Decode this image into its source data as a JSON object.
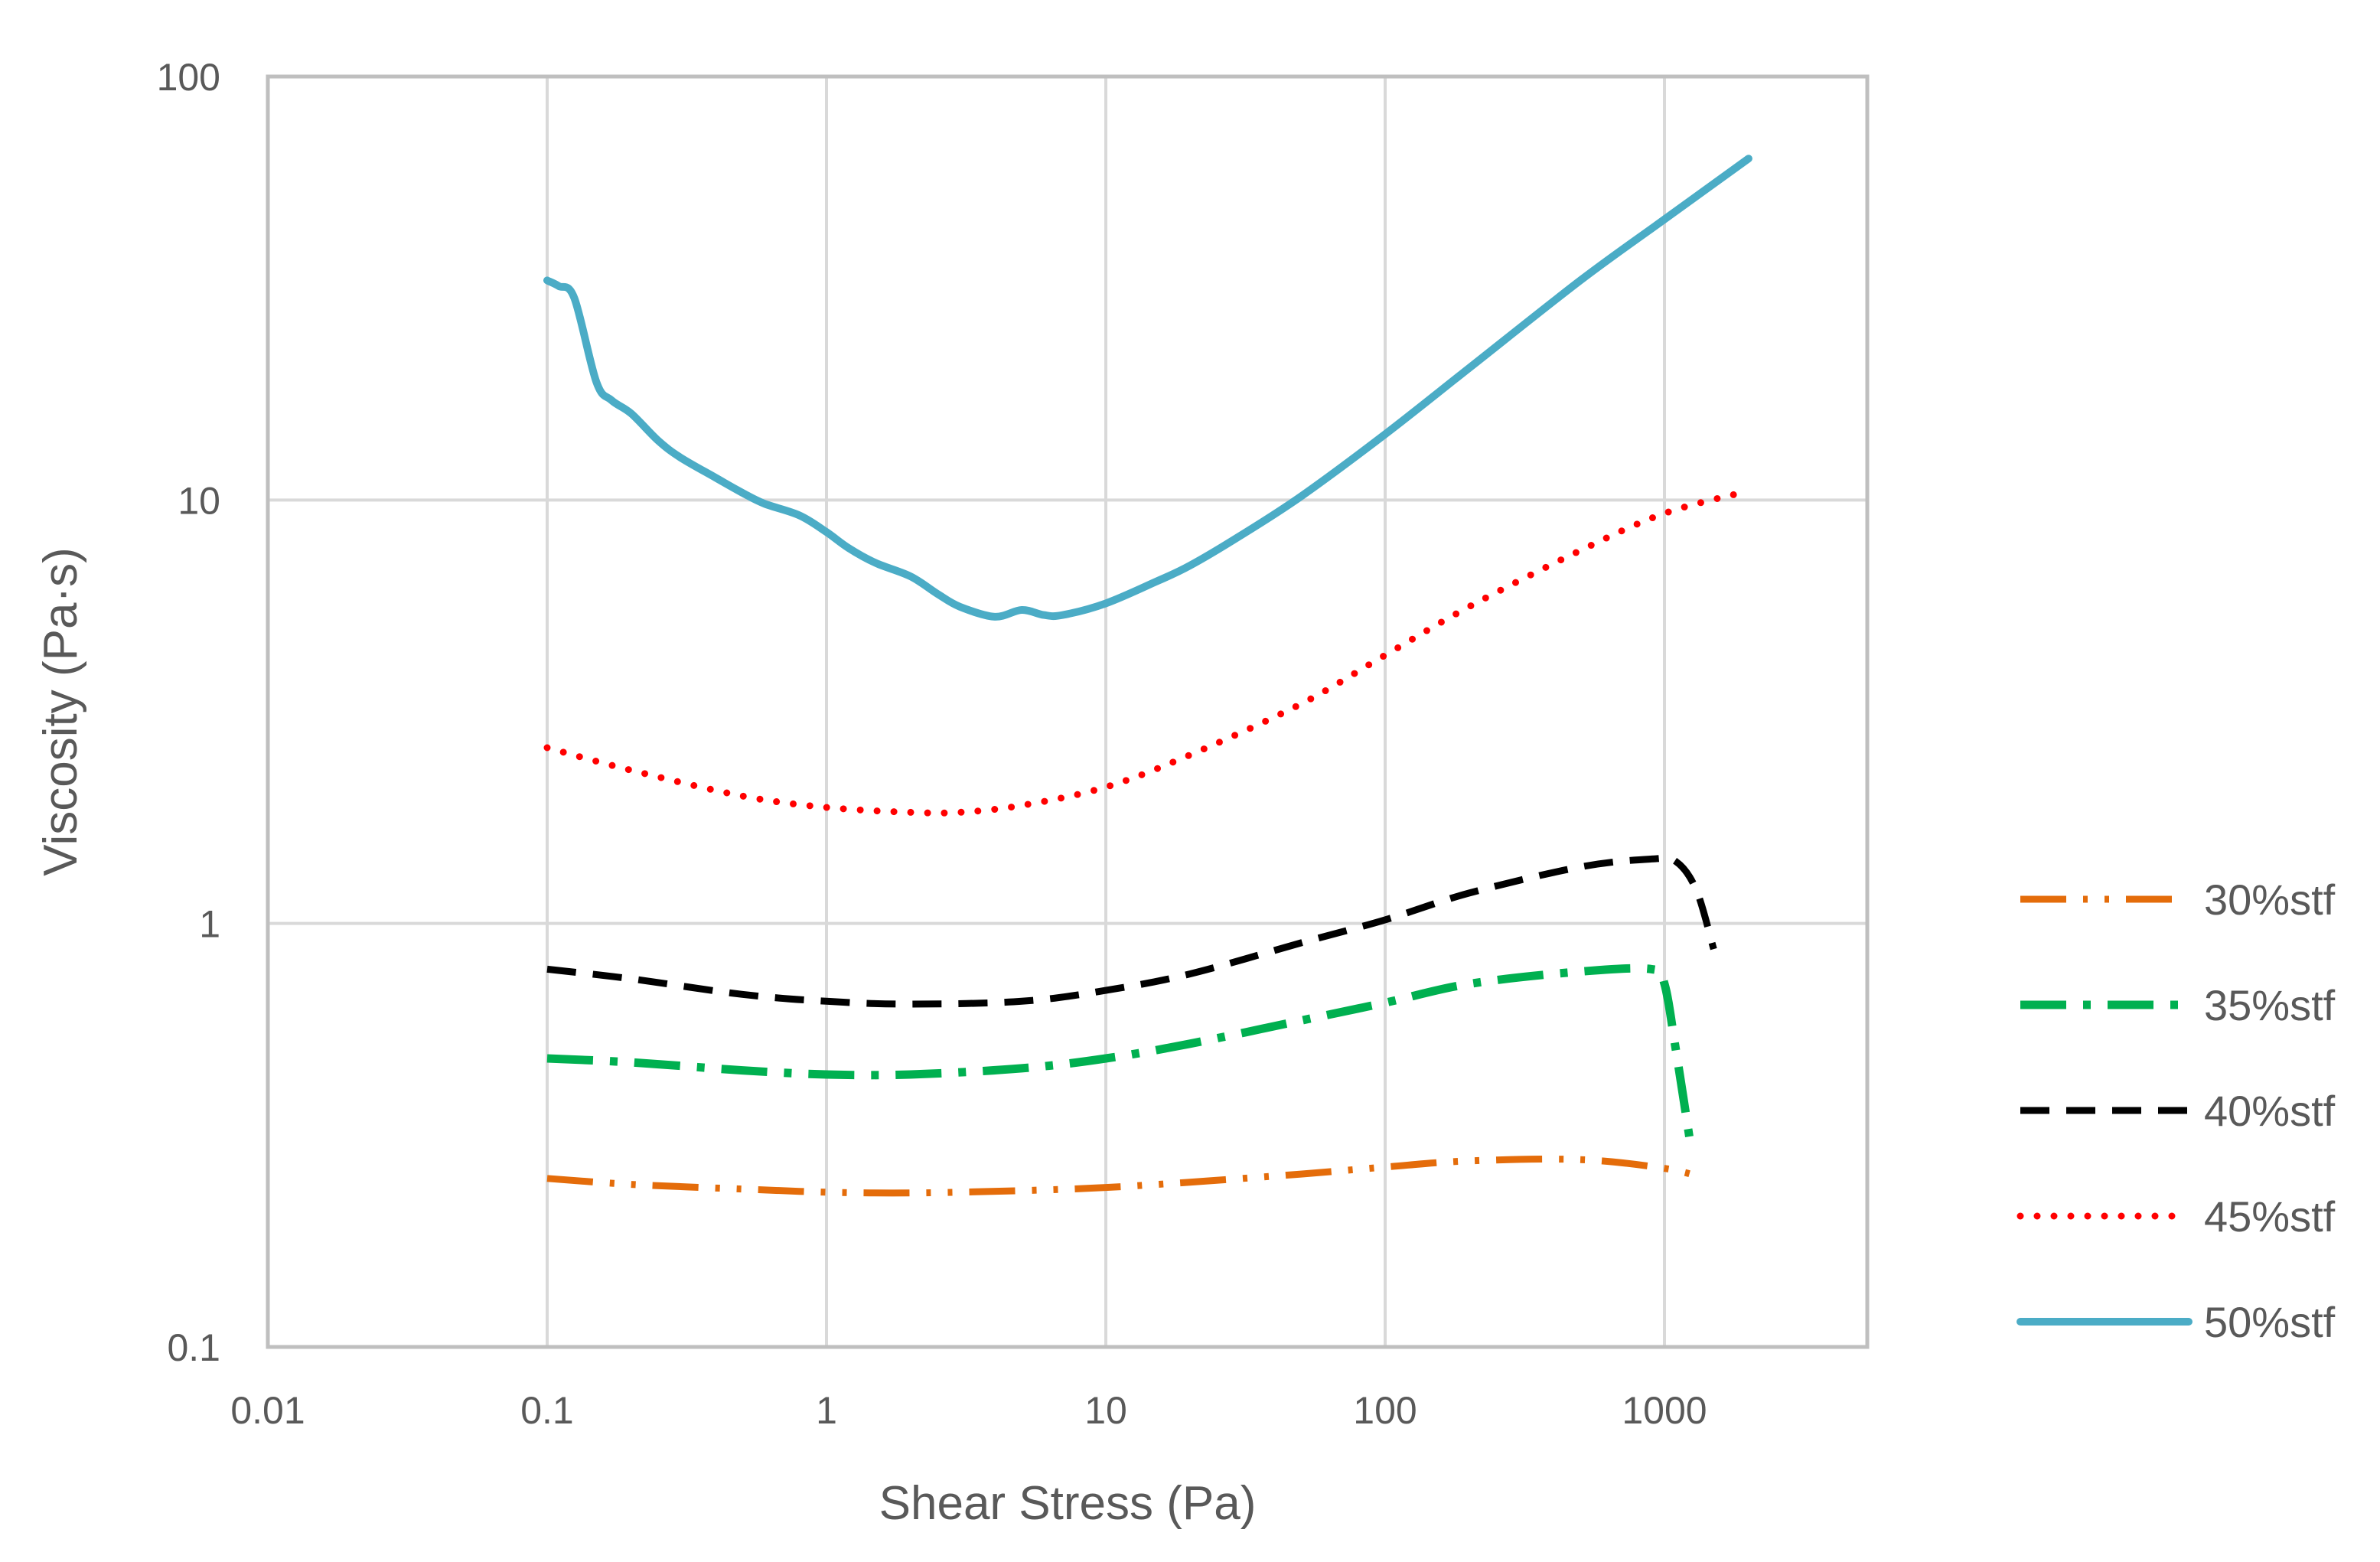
{
  "chart_data": {
    "type": "line",
    "title": "",
    "xlabel": "Shear Stress (Pa)",
    "ylabel": "Viscosity (Pa·s)",
    "xscale": "log",
    "yscale": "log",
    "xlim": [
      0.01,
      5000
    ],
    "ylim": [
      0.1,
      100
    ],
    "xticks": [
      0.01,
      0.1,
      1,
      10,
      100,
      1000
    ],
    "xtick_labels": [
      "0.01",
      "0.1",
      "1",
      "10",
      "100",
      "1000"
    ],
    "yticks": [
      0.1,
      1,
      10,
      100
    ],
    "ytick_labels": [
      "0.1",
      "1",
      "10",
      "100"
    ],
    "grid": true,
    "legend_position": "right",
    "colors": {
      "grid": "#d9d9d9",
      "axis": "#bfbfbf",
      "text": "#595959"
    },
    "series": [
      {
        "name": "30%stf",
        "color": "#e46c0a",
        "dash": "long-dash-dot-dot",
        "x": [
          0.1,
          0.2,
          0.5,
          1,
          2,
          5,
          10,
          20,
          50,
          100,
          200,
          500,
          1000,
          1400
        ],
        "y": [
          0.25,
          0.242,
          0.236,
          0.232,
          0.231,
          0.234,
          0.238,
          0.245,
          0.256,
          0.266,
          0.275,
          0.277,
          0.264,
          0.25
        ]
      },
      {
        "name": "35%stf",
        "color": "#00b050",
        "dash": "long-dash-dot",
        "x": [
          0.1,
          0.2,
          0.5,
          1,
          2,
          5,
          10,
          20,
          50,
          100,
          200,
          500,
          900,
          1000,
          1100,
          1250
        ],
        "y": [
          0.48,
          0.47,
          0.45,
          0.44,
          0.44,
          0.455,
          0.48,
          0.52,
          0.59,
          0.65,
          0.72,
          0.77,
          0.78,
          0.72,
          0.5,
          0.29
        ]
      },
      {
        "name": "40%stf",
        "color": "#000000",
        "dash": "dash",
        "x": [
          0.1,
          0.2,
          0.5,
          1,
          2,
          5,
          10,
          20,
          50,
          100,
          200,
          500,
          900,
          1100,
          1300,
          1500
        ],
        "y": [
          0.78,
          0.74,
          0.68,
          0.655,
          0.645,
          0.655,
          0.695,
          0.76,
          0.9,
          1.02,
          1.18,
          1.36,
          1.42,
          1.4,
          1.2,
          0.87
        ]
      },
      {
        "name": "45%stf",
        "color": "#ff0000",
        "dash": "dot",
        "x": [
          0.1,
          0.2,
          0.5,
          1,
          2,
          3,
          5,
          10,
          20,
          50,
          100,
          200,
          500,
          1000,
          2000
        ],
        "y": [
          2.6,
          2.3,
          2.0,
          1.88,
          1.83,
          1.83,
          1.9,
          2.1,
          2.5,
          3.3,
          4.3,
          5.6,
          7.6,
          9.3,
          10.5
        ]
      },
      {
        "name": "50%stf",
        "color": "#4bacc6",
        "dash": "solid",
        "x": [
          0.1,
          0.11,
          0.125,
          0.15,
          0.17,
          0.2,
          0.25,
          0.3,
          0.4,
          0.5,
          0.6,
          0.8,
          1,
          1.2,
          1.5,
          2,
          2.5,
          3,
          4,
          5,
          6,
          7,
          10,
          15,
          20,
          30,
          50,
          100,
          200,
          500,
          1000,
          2000
        ],
        "y": [
          33,
          32,
          30,
          19,
          17.2,
          16,
          13.8,
          12.6,
          11.3,
          10.4,
          9.8,
          9.2,
          8.4,
          7.7,
          7.1,
          6.6,
          6.0,
          5.6,
          5.3,
          5.5,
          5.35,
          5.35,
          5.7,
          6.4,
          7.0,
          8.2,
          10.2,
          14.3,
          20.5,
          33,
          46,
          64
        ]
      }
    ]
  }
}
